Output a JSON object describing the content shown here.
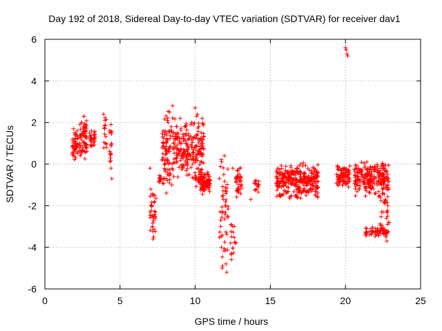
{
  "chart_data": {
    "type": "scatter",
    "title": "Day 192 of 2018, Sidereal Day-to-day VTEC variation (SDTVAR) for receiver dav1",
    "xlabel": "GPS time / hours",
    "ylabel": "SDTVAR / TECUs",
    "xlim": [
      0,
      25
    ],
    "ylim": [
      -6,
      6
    ],
    "xticks": [
      0,
      5,
      10,
      15,
      20,
      25
    ],
    "yticks": [
      -6,
      -4,
      -2,
      0,
      2,
      4,
      6
    ],
    "xtick_labels": [
      "0",
      "5",
      "10",
      "15",
      "20",
      "25"
    ],
    "ytick_labels": [
      "-6",
      "-4",
      "-2",
      "0",
      "2",
      "4",
      "6"
    ],
    "grid": true,
    "marker": "+",
    "color": "#ff0000",
    "series": [
      {
        "name": "dav1",
        "points": [
          [
            1.8,
            0.5
          ],
          [
            1.85,
            1.2
          ],
          [
            1.9,
            1.7
          ],
          [
            1.95,
            0.8
          ],
          [
            2.0,
            1.4
          ],
          [
            2.05,
            0.3
          ],
          [
            2.1,
            1.0
          ],
          [
            2.15,
            1.6
          ],
          [
            2.2,
            0.6
          ],
          [
            2.35,
            0.4
          ],
          [
            2.4,
            1.4
          ],
          [
            2.45,
            2.0
          ],
          [
            2.5,
            0.8
          ],
          [
            2.55,
            1.8
          ],
          [
            2.6,
            2.3
          ],
          [
            2.65,
            0.6
          ],
          [
            2.7,
            1.3
          ],
          [
            2.75,
            1.9
          ],
          [
            3.0,
            1.2
          ],
          [
            3.1,
            1.6
          ],
          [
            3.2,
            0.9
          ],
          [
            3.3,
            1.4
          ],
          [
            3.9,
            2.4
          ],
          [
            4.0,
            2.1
          ],
          [
            4.05,
            1.0
          ],
          [
            4.1,
            0.8
          ],
          [
            4.3,
            1.6
          ],
          [
            4.4,
            1.9
          ],
          [
            4.35,
            0.3
          ],
          [
            4.4,
            -0.2
          ],
          [
            4.45,
            -0.7
          ],
          [
            7.0,
            -0.2
          ],
          [
            7.05,
            -1.2
          ],
          [
            7.1,
            -2.0
          ],
          [
            7.15,
            -3.0
          ],
          [
            7.2,
            -3.6
          ],
          [
            7.25,
            -2.5
          ],
          [
            7.3,
            -1.8
          ],
          [
            7.35,
            -2.3
          ],
          [
            7.6,
            -0.8
          ],
          [
            7.7,
            -0.6
          ],
          [
            7.8,
            0.2
          ],
          [
            7.9,
            1.0
          ],
          [
            8.0,
            1.6
          ],
          [
            8.1,
            1.2
          ],
          [
            8.2,
            2.0
          ],
          [
            8.3,
            2.5
          ],
          [
            8.4,
            1.8
          ],
          [
            8.45,
            -1.0
          ],
          [
            8.5,
            2.8
          ],
          [
            8.6,
            1.0
          ],
          [
            8.8,
            1.5
          ],
          [
            8.9,
            0.5
          ],
          [
            9.0,
            2.2
          ],
          [
            9.1,
            1.0
          ],
          [
            9.2,
            0.3
          ],
          [
            9.3,
            1.8
          ],
          [
            9.4,
            1.0
          ],
          [
            9.5,
            0.2
          ],
          [
            9.6,
            -0.5
          ],
          [
            9.7,
            1.9
          ],
          [
            9.8,
            0.8
          ],
          [
            10.0,
            2.7
          ],
          [
            10.1,
            2.3
          ],
          [
            10.2,
            0.5
          ],
          [
            10.3,
            -0.4
          ],
          [
            10.4,
            1.5
          ],
          [
            10.5,
            1.0
          ],
          [
            10.6,
            -1.2
          ],
          [
            10.7,
            -0.5
          ],
          [
            10.8,
            -0.9
          ],
          [
            10.9,
            -1.0
          ],
          [
            11.0,
            -0.8
          ],
          [
            11.7,
            -3.0
          ],
          [
            11.75,
            -4.0
          ],
          [
            11.8,
            -5.0
          ],
          [
            11.85,
            -1.5
          ],
          [
            11.9,
            -0.5
          ],
          [
            11.95,
            0.4
          ],
          [
            12.0,
            -2.0
          ],
          [
            12.05,
            -4.8
          ],
          [
            12.1,
            -5.2
          ],
          [
            12.15,
            -2.5
          ],
          [
            12.4,
            -4.3
          ],
          [
            12.5,
            -0.2
          ],
          [
            12.6,
            -3.0
          ],
          [
            12.7,
            -3.8
          ],
          [
            12.8,
            -0.3
          ],
          [
            12.9,
            -1.2
          ],
          [
            13.0,
            -0.8
          ],
          [
            13.7,
            -1.7
          ],
          [
            14.0,
            -0.9
          ],
          [
            14.1,
            -1.2
          ],
          [
            14.2,
            -1.1
          ],
          [
            15.5,
            -0.4
          ],
          [
            15.6,
            -1.5
          ],
          [
            15.8,
            -0.8
          ],
          [
            16.0,
            -0.3
          ],
          [
            16.2,
            -0.9
          ],
          [
            16.4,
            -0.5
          ],
          [
            16.6,
            -1.0
          ],
          [
            16.8,
            -0.2
          ],
          [
            17.0,
            -1.3
          ],
          [
            17.2,
            -0.6
          ],
          [
            17.4,
            -0.9
          ],
          [
            17.6,
            -0.3
          ],
          [
            17.8,
            -1.0
          ],
          [
            18.0,
            -0.5
          ],
          [
            19.5,
            -0.6
          ],
          [
            19.6,
            -0.9
          ],
          [
            19.7,
            -0.3
          ],
          [
            19.8,
            -1.0
          ],
          [
            19.9,
            -0.5
          ],
          [
            20.0,
            -0.8
          ],
          [
            20.1,
            -0.4
          ],
          [
            20.2,
            -1.1
          ],
          [
            20.0,
            5.6
          ],
          [
            20.05,
            5.5
          ],
          [
            20.1,
            5.3
          ],
          [
            20.15,
            5.2
          ],
          [
            20.7,
            -0.2
          ],
          [
            20.9,
            -1.2
          ],
          [
            21.1,
            -0.5
          ],
          [
            21.3,
            -0.1
          ],
          [
            21.5,
            -0.8
          ],
          [
            21.7,
            -1.1
          ],
          [
            21.9,
            -0.6
          ],
          [
            22.1,
            -1.0
          ],
          [
            22.3,
            -0.7
          ],
          [
            22.5,
            -1.4
          ],
          [
            21.4,
            -3.1
          ],
          [
            21.7,
            -3.1
          ],
          [
            22.0,
            -3.1
          ],
          [
            22.3,
            -3.2
          ],
          [
            22.5,
            -3.3
          ],
          [
            22.7,
            -3.5
          ],
          [
            22.4,
            -2.3
          ],
          [
            22.6,
            -1.8
          ],
          [
            22.8,
            -2.9
          ],
          [
            22.9,
            -1.2
          ],
          [
            22.75,
            -3.7
          ]
        ],
        "clusters": [
          {
            "x": [
              1.8,
              2.2
            ],
            "y": [
              0.2,
              1.7
            ],
            "n": 40
          },
          {
            "x": [
              2.3,
              2.8
            ],
            "y": [
              0.2,
              2.3
            ],
            "n": 60
          },
          {
            "x": [
              2.95,
              3.35
            ],
            "y": [
              0.8,
              1.7
            ],
            "n": 25
          },
          {
            "x": [
              3.9,
              4.1
            ],
            "y": [
              0.7,
              2.4
            ],
            "n": 12
          },
          {
            "x": [
              4.3,
              4.45
            ],
            "y": [
              -0.6,
              1.9
            ],
            "n": 14
          },
          {
            "x": [
              7.0,
              7.4
            ],
            "y": [
              -3.6,
              -1.0
            ],
            "n": 30
          },
          {
            "x": [
              7.55,
              7.8
            ],
            "y": [
              -1.0,
              -0.5
            ],
            "n": 10
          },
          {
            "x": [
              7.8,
              8.6
            ],
            "y": [
              -1.6,
              2.8
            ],
            "n": 90
          },
          {
            "x": [
              8.6,
              9.9
            ],
            "y": [
              -0.8,
              2.2
            ],
            "n": 130
          },
          {
            "x": [
              9.9,
              10.6
            ],
            "y": [
              -1.6,
              2.7
            ],
            "n": 90
          },
          {
            "x": [
              10.3,
              11.0
            ],
            "y": [
              -1.5,
              -0.3
            ],
            "n": 80
          },
          {
            "x": [
              11.6,
              12.2
            ],
            "y": [
              -5.2,
              0.4
            ],
            "n": 45
          },
          {
            "x": [
              12.3,
              12.7
            ],
            "y": [
              -4.8,
              -2.5
            ],
            "n": 15
          },
          {
            "x": [
              12.7,
              13.1
            ],
            "y": [
              -1.6,
              0.1
            ],
            "n": 35
          },
          {
            "x": [
              13.9,
              14.25
            ],
            "y": [
              -1.4,
              -0.7
            ],
            "n": 12
          },
          {
            "x": [
              15.4,
              18.2
            ],
            "y": [
              -1.7,
              0.1
            ],
            "n": 300
          },
          {
            "x": [
              19.4,
              20.3
            ],
            "y": [
              -1.2,
              0.0
            ],
            "n": 90
          },
          {
            "x": [
              20.6,
              22.9
            ],
            "y": [
              -1.6,
              0.2
            ],
            "n": 220
          },
          {
            "x": [
              21.3,
              22.8
            ],
            "y": [
              -3.5,
              -3.0
            ],
            "n": 50
          },
          {
            "x": [
              22.3,
              22.9
            ],
            "y": [
              -3.7,
              -1.0
            ],
            "n": 30
          }
        ]
      }
    ]
  }
}
